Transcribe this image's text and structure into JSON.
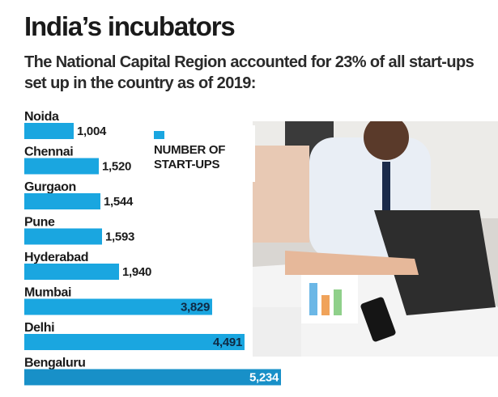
{
  "title": "India’s incubators",
  "subtitle": "The National Capital Region accounted for 23% of all start-ups set up in the country as of 2019:",
  "legend": {
    "label": "NUMBER OF START-UPS",
    "color": "#1aa6e0"
  },
  "chart_data": {
    "type": "bar",
    "orientation": "horizontal",
    "categories": [
      "Noida",
      "Chennai",
      "Gurgaon",
      "Pune",
      "Hyderabad",
      "Mumbai",
      "Delhi",
      "Bengaluru"
    ],
    "values": [
      1004,
      1520,
      1544,
      1593,
      1940,
      3829,
      4491,
      5234
    ],
    "value_labels": [
      "1,004",
      "1,520",
      "1,544",
      "1,593",
      "1,940",
      "3,829",
      "4,491",
      "5,234"
    ],
    "series": [
      {
        "name": "NUMBER OF START-UPS",
        "values": [
          1004,
          1520,
          1544,
          1593,
          1940,
          3829,
          4491,
          5234
        ]
      }
    ],
    "colors": {
      "bar": "#1aa6e0",
      "last_bar": "#1890c8"
    },
    "xlim": [
      0,
      5234
    ],
    "grid": false
  }
}
